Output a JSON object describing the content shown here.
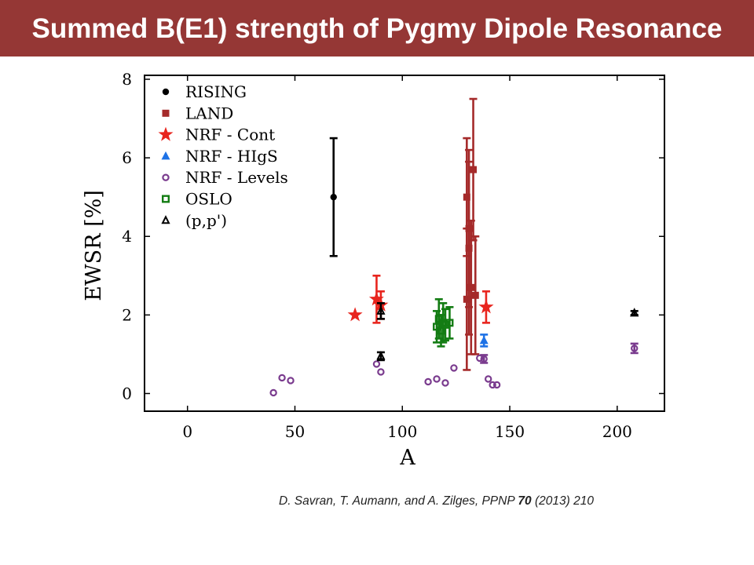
{
  "slide_title": "Summed B(E1) strength of Pygmy Dipole Resonance",
  "citation": {
    "prefix": "D. Savran, T. Aumann, and A. Zilges,  PPNP ",
    "volume": "70",
    "suffix": " (2013) 210"
  },
  "colors": {
    "title_bar": "#953735",
    "RISING": "#000000",
    "LAND": "#a52a2a",
    "NRF - Cont": "#e8251e",
    "NRF - HIgS": "#1e72e6",
    "NRF - Levels": "#7a3b8e",
    "OSLO": "#137c13",
    "(p,p')": "#000000"
  },
  "chart_data": {
    "type": "scatter",
    "title": "",
    "xlabel": "A",
    "ylabel": "EWSR [%]",
    "xlim": [
      -20,
      222
    ],
    "ylim": [
      -0.45,
      8.1
    ],
    "xticks": [
      0,
      50,
      100,
      150,
      200
    ],
    "yticks": [
      0,
      2,
      4,
      6,
      8
    ],
    "grid": false,
    "legend_position": "top-left",
    "series": [
      {
        "name": "RISING",
        "marker": "circle",
        "points": [
          {
            "x": 68,
            "y": 5.0,
            "err": 1.5
          }
        ]
      },
      {
        "name": "LAND",
        "marker": "square",
        "points": [
          {
            "x": 130,
            "y": 2.4,
            "err": 1.8
          },
          {
            "x": 130,
            "y": 5.0,
            "err": 1.5
          },
          {
            "x": 131,
            "y": 4.2,
            "err": 2.0
          },
          {
            "x": 131,
            "y": 3.7,
            "err": 2.2
          },
          {
            "x": 132,
            "y": 2.7,
            "err": 1.7
          },
          {
            "x": 133,
            "y": 5.7,
            "err": 1.8
          },
          {
            "x": 134,
            "y": 2.5,
            "err": 1.5
          }
        ]
      },
      {
        "name": "NRF - Cont",
        "marker": "star",
        "points": [
          {
            "x": 78,
            "y": 2.0,
            "err": 0
          },
          {
            "x": 88,
            "y": 2.4,
            "err": 0.6
          },
          {
            "x": 90,
            "y": 2.25,
            "err": 0.35
          },
          {
            "x": 139,
            "y": 2.2,
            "err": 0.4
          }
        ]
      },
      {
        "name": "NRF - HIgS",
        "marker": "triangle",
        "points": [
          {
            "x": 138,
            "y": 1.35,
            "err": 0.15
          }
        ]
      },
      {
        "name": "NRF - Levels",
        "marker": "open-circle",
        "points": [
          {
            "x": 40,
            "y": 0.02,
            "err": 0
          },
          {
            "x": 44,
            "y": 0.4,
            "err": 0
          },
          {
            "x": 48,
            "y": 0.33,
            "err": 0
          },
          {
            "x": 88,
            "y": 0.75,
            "err": 0
          },
          {
            "x": 90,
            "y": 0.55,
            "err": 0
          },
          {
            "x": 112,
            "y": 0.3,
            "err": 0
          },
          {
            "x": 116,
            "y": 0.37,
            "err": 0
          },
          {
            "x": 120,
            "y": 0.27,
            "err": 0
          },
          {
            "x": 124,
            "y": 0.65,
            "err": 0
          },
          {
            "x": 136,
            "y": 0.9,
            "err": 0
          },
          {
            "x": 138,
            "y": 0.88,
            "err": 0.1
          },
          {
            "x": 140,
            "y": 0.37,
            "err": 0
          },
          {
            "x": 142,
            "y": 0.22,
            "err": 0
          },
          {
            "x": 144,
            "y": 0.22,
            "err": 0
          },
          {
            "x": 208,
            "y": 1.15,
            "err": 0.12
          }
        ]
      },
      {
        "name": "OSLO",
        "marker": "open-square",
        "points": [
          {
            "x": 116,
            "y": 1.7,
            "err": 0.4
          },
          {
            "x": 117,
            "y": 1.9,
            "err": 0.5
          },
          {
            "x": 118,
            "y": 1.6,
            "err": 0.4
          },
          {
            "x": 119,
            "y": 1.8,
            "err": 0.5
          },
          {
            "x": 120,
            "y": 1.75,
            "err": 0.4
          },
          {
            "x": 122,
            "y": 1.8,
            "err": 0.4
          }
        ]
      },
      {
        "name": "(p,p')",
        "marker": "open-triangle",
        "points": [
          {
            "x": 90,
            "y": 2.1,
            "err": 0.2
          },
          {
            "x": 90,
            "y": 0.95,
            "err": 0.1
          },
          {
            "x": 208,
            "y": 2.05,
            "err": 0.05
          }
        ]
      }
    ]
  }
}
